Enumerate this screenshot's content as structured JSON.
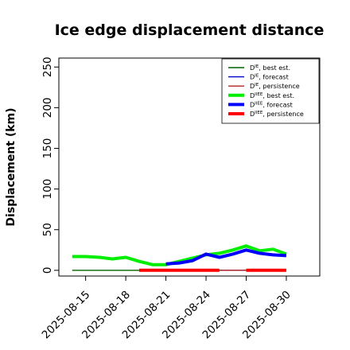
{
  "chart_data": {
    "type": "line",
    "title": "Ice edge displacement distance",
    "ylabel": "Displacement (km)",
    "xlabel": "",
    "ylim": [
      -7,
      261
    ],
    "yticks": [
      0,
      50,
      100,
      150,
      200,
      250
    ],
    "xticks": [
      "2025-08-15",
      "2025-08-18",
      "2025-08-21",
      "2025-08-24",
      "2025-08-27",
      "2025-08-30"
    ],
    "highlight_tick": "2025-08-21",
    "highlight_color": "#228B22",
    "grid": false,
    "legend_position": "top-right",
    "series": [
      {
        "name": "D_IE best est.",
        "sub": "IE",
        "label": ", best est.",
        "color": "#006400",
        "width": 1.4,
        "x": [
          "2025-08-14",
          "2025-08-15",
          "2025-08-16",
          "2025-08-17",
          "2025-08-18",
          "2025-08-19",
          "2025-08-20",
          "2025-08-21",
          "2025-08-22",
          "2025-08-23",
          "2025-08-24",
          "2025-08-25",
          "2025-08-26",
          "2025-08-27",
          "2025-08-28",
          "2025-08-29",
          "2025-08-30"
        ],
        "y": [
          0,
          0,
          0,
          0,
          0,
          0,
          0,
          0,
          0,
          0,
          0,
          0,
          0,
          0,
          0,
          0,
          0
        ]
      },
      {
        "name": "D_IE forecast",
        "sub": "IE",
        "label": ", forecast",
        "color": "#0000CD",
        "width": 1.4,
        "x": [
          "2025-08-21",
          "2025-08-22",
          "2025-08-23",
          "2025-08-24",
          "2025-08-25",
          "2025-08-26",
          "2025-08-27",
          "2025-08-28",
          "2025-08-29",
          "2025-08-30"
        ],
        "y": [
          0,
          0,
          0,
          0,
          0,
          0,
          0,
          0,
          0,
          0
        ]
      },
      {
        "name": "D_IE persistence",
        "sub": "IE",
        "label": ", persistence",
        "color": "#B22222",
        "width": 1.4,
        "x": [
          "2025-08-21",
          "2025-08-22",
          "2025-08-23",
          "2025-08-24",
          "2025-08-25",
          "2025-08-26",
          "2025-08-27",
          "2025-08-28",
          "2025-08-29",
          "2025-08-30"
        ],
        "y": [
          0,
          0,
          0,
          0,
          0,
          0,
          0,
          0,
          0,
          0
        ]
      },
      {
        "name": "D_IIEE best est.",
        "sub": "IIEE",
        "label": ", best est.",
        "color": "#00EE00",
        "width": 4,
        "x": [
          "2025-08-14",
          "2025-08-15",
          "2025-08-16",
          "2025-08-17",
          "2025-08-18",
          "2025-08-19",
          "2025-08-20",
          "2025-08-21",
          "2025-08-22",
          "2025-08-23",
          "2025-08-24",
          "2025-08-25",
          "2025-08-26",
          "2025-08-27",
          "2025-08-28",
          "2025-08-29",
          "2025-08-30"
        ],
        "y": [
          17,
          17,
          16,
          14,
          16,
          11,
          7,
          7,
          11,
          15,
          19,
          21,
          25,
          30,
          24,
          26,
          20
        ]
      },
      {
        "name": "D_IIEE forecast",
        "sub": "IIEE",
        "label": ", forecast",
        "color": "#0000FF",
        "width": 4,
        "x": [
          "2025-08-21",
          "2025-08-22",
          "2025-08-23",
          "2025-08-24",
          "2025-08-25",
          "2025-08-26",
          "2025-08-27",
          "2025-08-28",
          "2025-08-29",
          "2025-08-30"
        ],
        "y": [
          8,
          9,
          12,
          20,
          16,
          20,
          25,
          21,
          19,
          18
        ]
      },
      {
        "name": "D_IIEE persistence",
        "sub": "IIEE",
        "label": ", persistence",
        "color": "#FF0000",
        "width": 4,
        "segments": [
          {
            "x": [
              "2025-08-19",
              "2025-08-20",
              "2025-08-21",
              "2025-08-22",
              "2025-08-23",
              "2025-08-24",
              "2025-08-25"
            ],
            "y": [
              0,
              0,
              0,
              0,
              0,
              0,
              0
            ]
          },
          {
            "x": [
              "2025-08-27",
              "2025-08-28",
              "2025-08-29",
              "2025-08-30"
            ],
            "y": [
              0,
              0,
              0,
              0
            ]
          }
        ]
      }
    ]
  }
}
